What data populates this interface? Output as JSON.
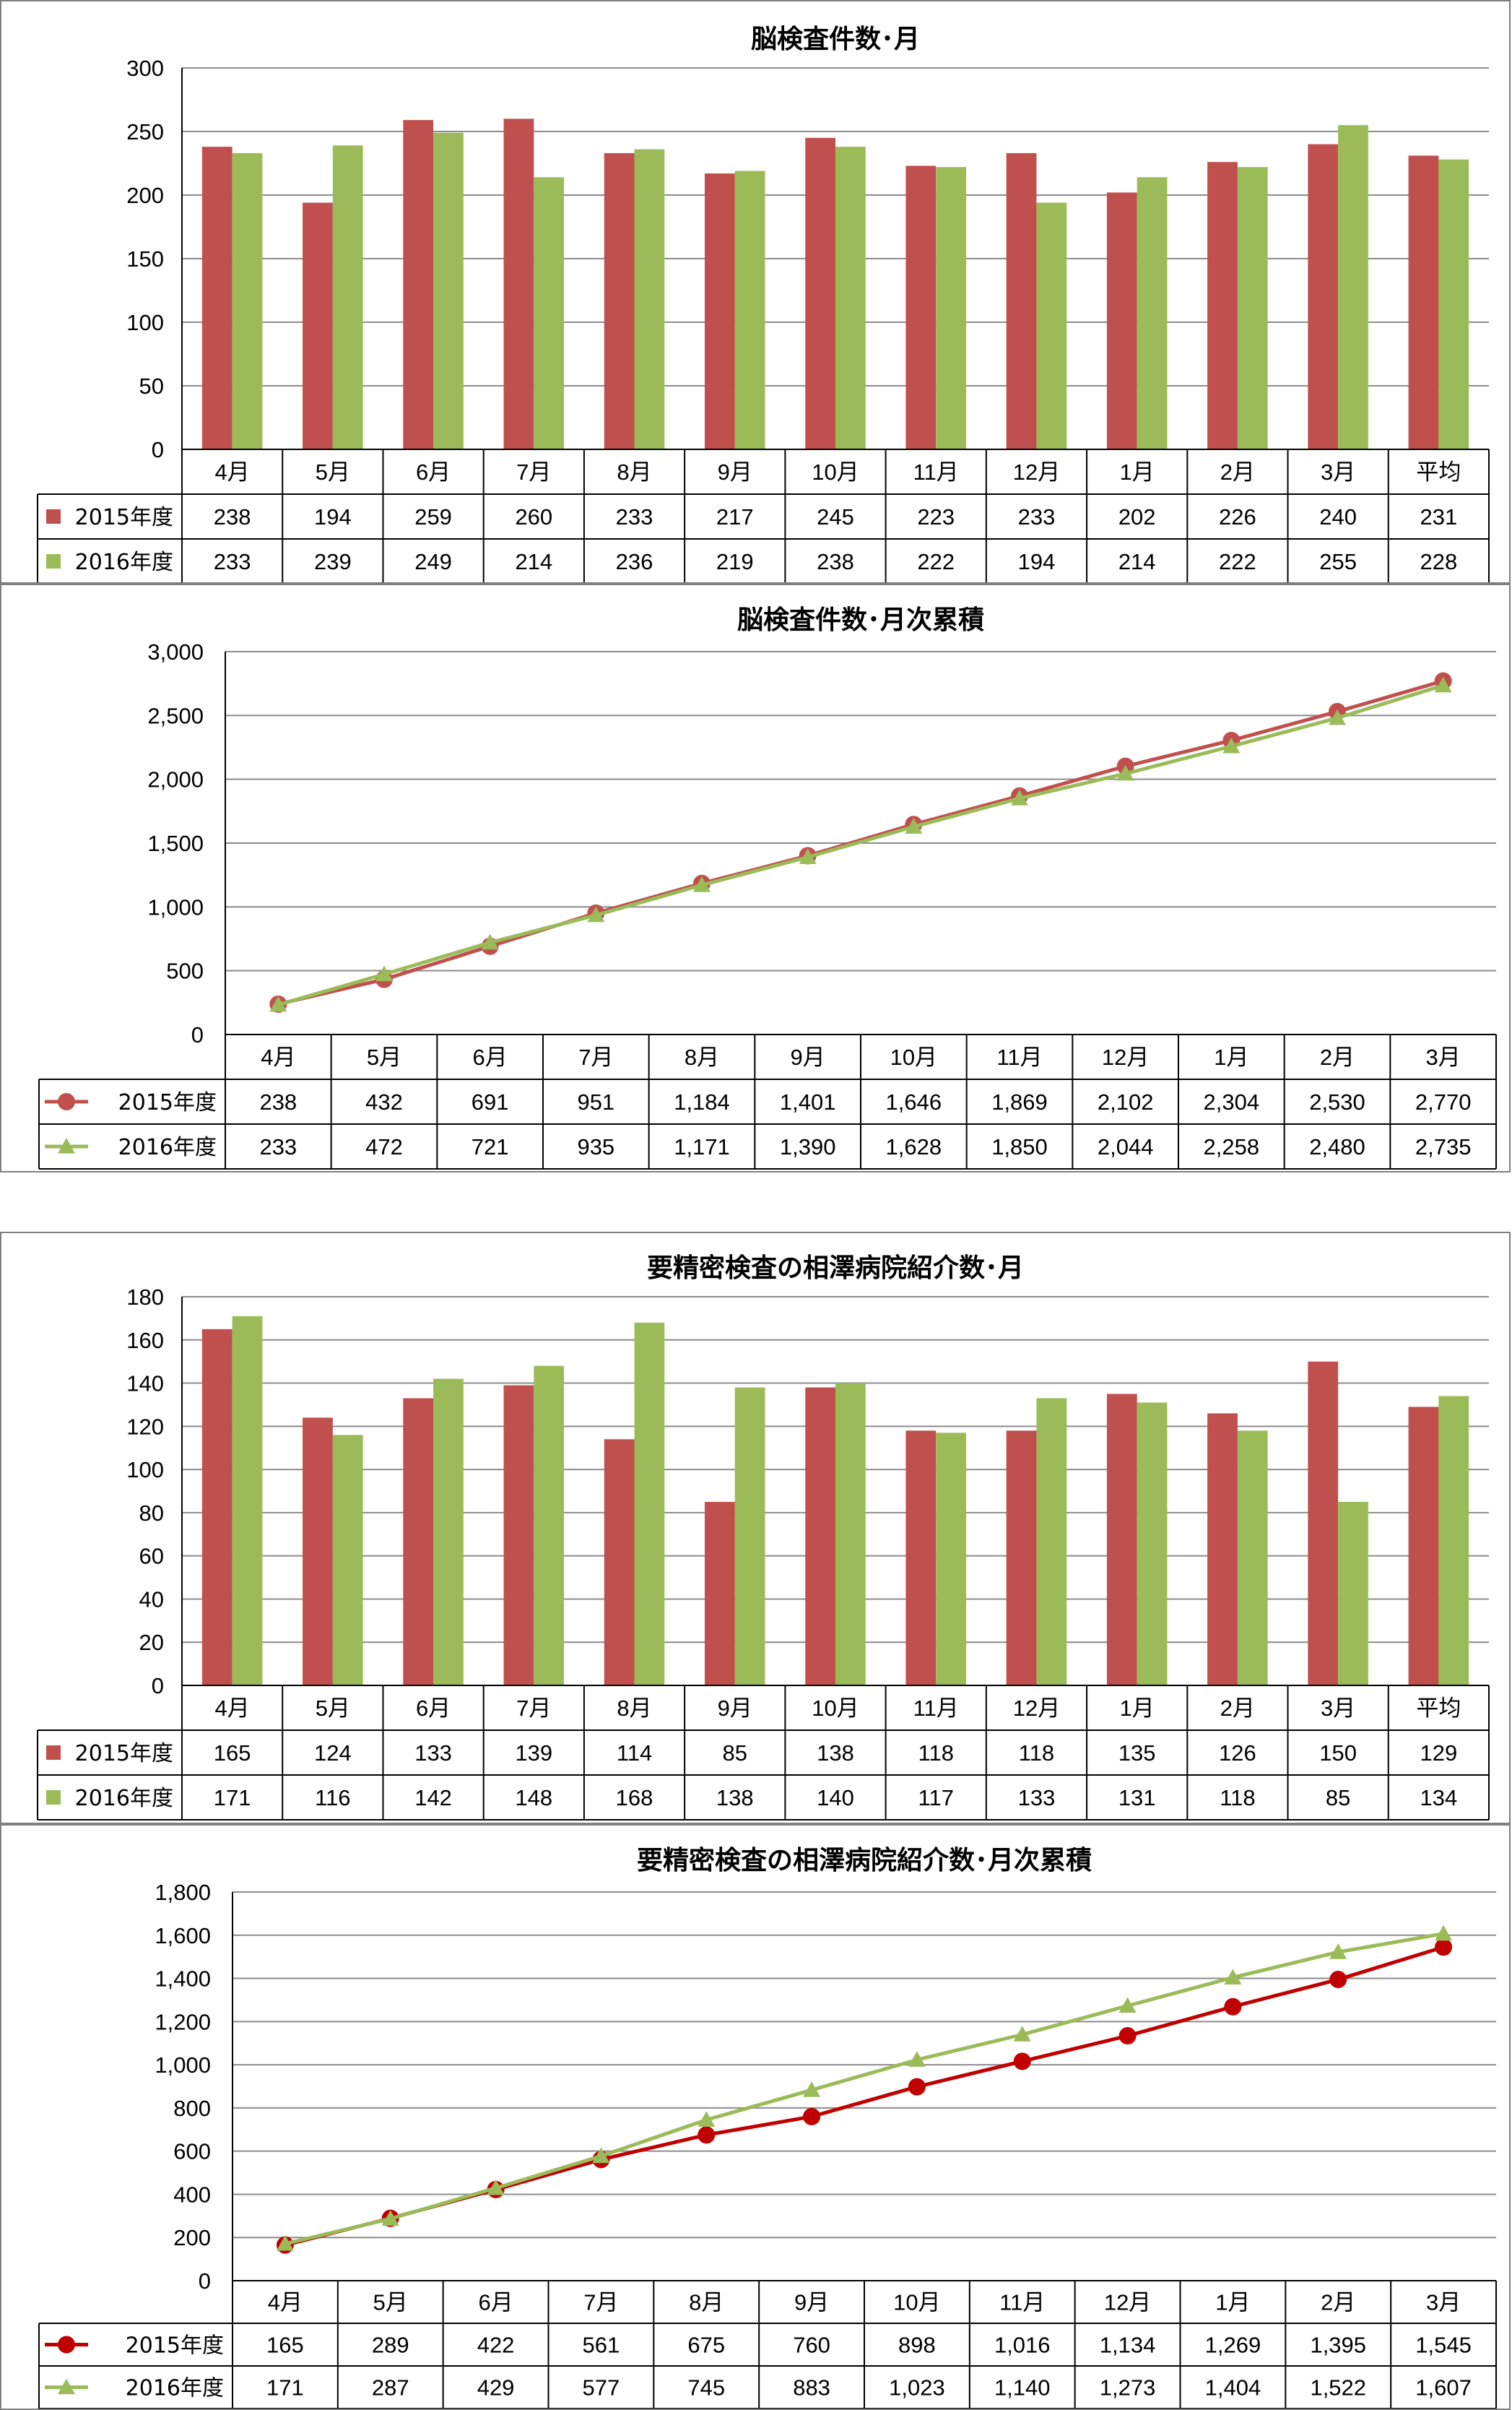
{
  "colors": {
    "s2015": "#c0504d",
    "s2016": "#9bbb59"
  },
  "chart_data": [
    {
      "type": "bar",
      "title": "脳検査件数･月",
      "categories": [
        "4月",
        "5月",
        "6月",
        "7月",
        "8月",
        "9月",
        "10月",
        "11月",
        "12月",
        "1月",
        "2月",
        "3月",
        "平均"
      ],
      "ylim": [
        0,
        300
      ],
      "yticks": [
        0,
        50,
        100,
        150,
        200,
        250,
        300
      ],
      "ytick_labels": [
        "0",
        "50",
        "100",
        "150",
        "200",
        "250",
        "300"
      ],
      "grid": true,
      "series": [
        {
          "name": "2015年度",
          "color": "#c0504d",
          "values": [
            238,
            194,
            259,
            260,
            233,
            217,
            245,
            223,
            233,
            202,
            226,
            240,
            231
          ],
          "labels": [
            "238",
            "194",
            "259",
            "260",
            "233",
            "217",
            "245",
            "223",
            "233",
            "202",
            "226",
            "240",
            "231"
          ]
        },
        {
          "name": "2016年度",
          "color": "#9bbb59",
          "values": [
            233,
            239,
            249,
            214,
            236,
            219,
            238,
            222,
            194,
            214,
            222,
            255,
            228
          ],
          "labels": [
            "233",
            "239",
            "249",
            "214",
            "236",
            "219",
            "238",
            "222",
            "194",
            "214",
            "222",
            "255",
            "228"
          ]
        }
      ]
    },
    {
      "type": "line",
      "title": "脳検査件数･月次累積",
      "categories": [
        "4月",
        "5月",
        "6月",
        "7月",
        "8月",
        "9月",
        "10月",
        "11月",
        "12月",
        "1月",
        "2月",
        "3月"
      ],
      "ylim": [
        0,
        3000
      ],
      "yticks": [
        0,
        500,
        1000,
        1500,
        2000,
        2500,
        3000
      ],
      "ytick_labels": [
        "0",
        "500",
        "1,000",
        "1,500",
        "2,000",
        "2,500",
        "3,000"
      ],
      "grid": true,
      "series": [
        {
          "name": "2015年度",
          "color": "#c0504d",
          "marker": "circle",
          "values": [
            238,
            432,
            691,
            951,
            1184,
            1401,
            1646,
            1869,
            2102,
            2304,
            2530,
            2770
          ],
          "labels": [
            "238",
            "432",
            "691",
            "951",
            "1,184",
            "1,401",
            "1,646",
            "1,869",
            "2,102",
            "2,304",
            "2,530",
            "2,770"
          ]
        },
        {
          "name": "2016年度",
          "color": "#9bbb59",
          "marker": "triangle",
          "values": [
            233,
            472,
            721,
            935,
            1171,
            1390,
            1628,
            1850,
            2044,
            2258,
            2480,
            2735
          ],
          "labels": [
            "233",
            "472",
            "721",
            "935",
            "1,171",
            "1,390",
            "1,628",
            "1,850",
            "2,044",
            "2,258",
            "2,480",
            "2,735"
          ]
        }
      ]
    },
    {
      "type": "bar",
      "title": "要精密検査の相澤病院紹介数･月",
      "categories": [
        "4月",
        "5月",
        "6月",
        "7月",
        "8月",
        "9月",
        "10月",
        "11月",
        "12月",
        "1月",
        "2月",
        "3月",
        "平均"
      ],
      "ylim": [
        0,
        180
      ],
      "yticks": [
        0,
        20,
        40,
        60,
        80,
        100,
        120,
        140,
        160,
        180
      ],
      "ytick_labels": [
        "0",
        "20",
        "40",
        "60",
        "80",
        "100",
        "120",
        "140",
        "160",
        "180"
      ],
      "grid": true,
      "series": [
        {
          "name": "2015年度",
          "color": "#c0504d",
          "values": [
            165,
            124,
            133,
            139,
            114,
            85,
            138,
            118,
            118,
            135,
            126,
            150,
            129
          ],
          "labels": [
            "165",
            "124",
            "133",
            "139",
            "114",
            "85",
            "138",
            "118",
            "118",
            "135",
            "126",
            "150",
            "129"
          ]
        },
        {
          "name": "2016年度",
          "color": "#9bbb59",
          "values": [
            171,
            116,
            142,
            148,
            168,
            138,
            140,
            117,
            133,
            131,
            118,
            85,
            134
          ],
          "labels": [
            "171",
            "116",
            "142",
            "148",
            "168",
            "138",
            "140",
            "117",
            "133",
            "131",
            "118",
            "85",
            "134"
          ]
        }
      ]
    },
    {
      "type": "line",
      "title": "要精密検査の相澤病院紹介数･月次累積",
      "categories": [
        "4月",
        "5月",
        "6月",
        "7月",
        "8月",
        "9月",
        "10月",
        "11月",
        "12月",
        "1月",
        "2月",
        "3月"
      ],
      "ylim": [
        0,
        1800
      ],
      "yticks": [
        0,
        200,
        400,
        600,
        800,
        1000,
        1200,
        1400,
        1600,
        1800
      ],
      "ytick_labels": [
        "0",
        "200",
        "400",
        "600",
        "800",
        "1,000",
        "1,200",
        "1,400",
        "1,600",
        "1,800"
      ],
      "grid": true,
      "series": [
        {
          "name": "2015年度",
          "color": "#c00000",
          "marker": "circle",
          "values": [
            165,
            289,
            422,
            561,
            675,
            760,
            898,
            1016,
            1134,
            1269,
            1395,
            1545
          ],
          "labels": [
            "165",
            "289",
            "422",
            "561",
            "675",
            "760",
            "898",
            "1,016",
            "1,134",
            "1,269",
            "1,395",
            "1,545"
          ]
        },
        {
          "name": "2016年度",
          "color": "#9bbb59",
          "marker": "triangle",
          "values": [
            171,
            287,
            429,
            577,
            745,
            883,
            1023,
            1140,
            1273,
            1404,
            1522,
            1607
          ],
          "labels": [
            "171",
            "287",
            "429",
            "577",
            "745",
            "883",
            "1,023",
            "1,140",
            "1,273",
            "1,404",
            "1,522",
            "1,607"
          ]
        }
      ]
    }
  ]
}
